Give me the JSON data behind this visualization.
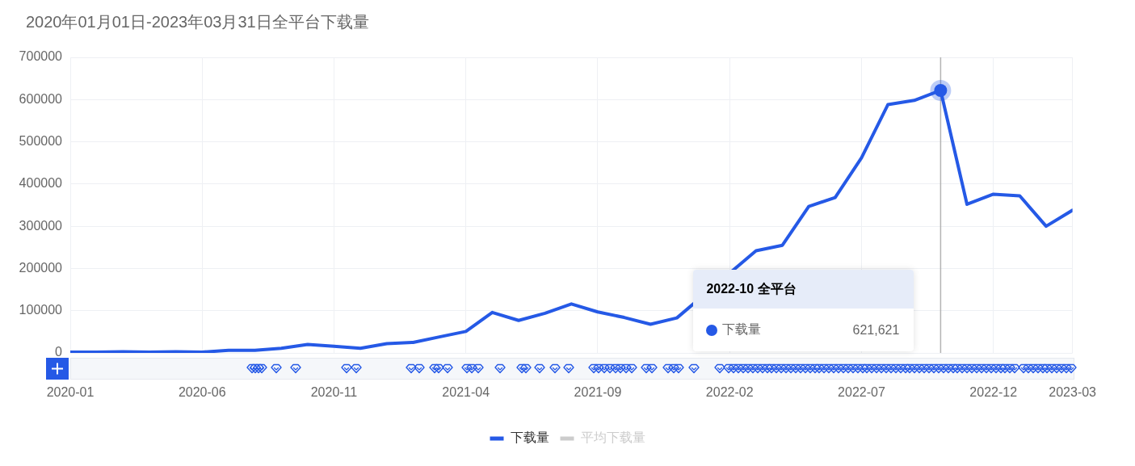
{
  "chart_data": {
    "type": "line",
    "title": "2020年01月01日-2023年03月31日全平台下载量",
    "x": [
      "2020-01",
      "2020-02",
      "2020-03",
      "2020-04",
      "2020-05",
      "2020-06",
      "2020-07",
      "2020-08",
      "2020-09",
      "2020-10",
      "2020-11",
      "2020-12",
      "2021-01",
      "2021-02",
      "2021-03",
      "2021-04",
      "2021-05",
      "2021-06",
      "2021-07",
      "2021-08",
      "2021-09",
      "2021-10",
      "2021-11",
      "2021-12",
      "2022-01",
      "2022-02",
      "2022-03",
      "2022-04",
      "2022-05",
      "2022-06",
      "2022-07",
      "2022-08",
      "2022-09",
      "2022-10",
      "2022-11",
      "2022-12",
      "2023-01",
      "2023-02",
      "2023-03"
    ],
    "series": [
      {
        "name": "下载量",
        "color": "#2559e6",
        "values": [
          2000,
          2000,
          3000,
          2000,
          3000,
          2000,
          6000,
          6000,
          11000,
          20000,
          16000,
          11000,
          22000,
          25000,
          38000,
          51000,
          96000,
          77000,
          94000,
          116000,
          97000,
          84000,
          68000,
          83000,
          null,
          null,
          242000,
          255000,
          347000,
          368000,
          462000,
          588000,
          598000,
          621621,
          352000,
          376000,
          372000,
          300000,
          338000
        ]
      },
      {
        "name": "平均下载量",
        "color": "#cccccc",
        "values": [
          null,
          null,
          null,
          null,
          null,
          null,
          null,
          null,
          null,
          null,
          null,
          null,
          null,
          null,
          null,
          null,
          null,
          null,
          null,
          null,
          null,
          null,
          null,
          null,
          null,
          null,
          null,
          null,
          null,
          null,
          null,
          null,
          null,
          null,
          null,
          null,
          null,
          null,
          null
        ]
      }
    ],
    "xlim": [
      "2020-01",
      "2023-03"
    ],
    "xticks": [
      "2020-01",
      "2020-06",
      "2020-11",
      "2021-04",
      "2021-09",
      "2022-02",
      "2022-07",
      "2022-12",
      "2023-03"
    ],
    "ylim": [
      0,
      700000
    ],
    "yticks": [
      0,
      100000,
      200000,
      300000,
      400000,
      500000,
      600000,
      700000
    ],
    "grid": true,
    "legend": "bottom",
    "ref_lines": [
      {
        "axis": "x",
        "value": "2022-10",
        "color": "#b3b3b3"
      }
    ],
    "annotations": [
      "2022-10 全平台",
      "下载量 621,621"
    ]
  }
}
